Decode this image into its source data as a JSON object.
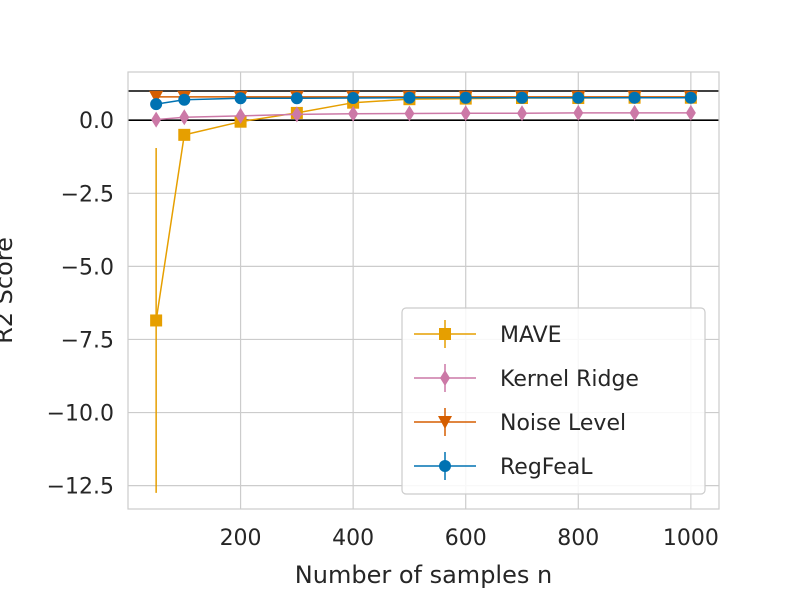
{
  "chart_data": {
    "type": "line",
    "title": "",
    "xlabel": "Number of samples n",
    "ylabel": "R2 Score",
    "xlim": [
      0,
      1050
    ],
    "ylim": [
      -13.3,
      1.65
    ],
    "xticks": [
      200,
      400,
      600,
      800,
      1000
    ],
    "xtick_labels": [
      "200",
      "400",
      "600",
      "800",
      "1000"
    ],
    "yticks": [
      0.0,
      -2.5,
      -5.0,
      -7.5,
      -10.0,
      -12.5
    ],
    "ytick_labels": [
      "0.0",
      "−2.5",
      "−5.0",
      "−7.5",
      "−10.0",
      "−12.5"
    ],
    "reference_lines": [
      0,
      1
    ],
    "grid": true,
    "legend_position": "lower right",
    "x": [
      50,
      100,
      200,
      300,
      400,
      500,
      600,
      700,
      800,
      900,
      1000
    ],
    "series": [
      {
        "name": "MAVE",
        "color": "#e69f00",
        "marker": "square",
        "values": [
          -6.85,
          -0.5,
          -0.05,
          0.25,
          0.6,
          0.72,
          0.74,
          0.76,
          0.76,
          0.77,
          0.77
        ],
        "errors": [
          5.9,
          0.1,
          0.05,
          0.05,
          0.05,
          0.05,
          0.05,
          0.05,
          0.05,
          0.05,
          0.05
        ]
      },
      {
        "name": "Kernel Ridge",
        "color": "#cc79a7",
        "marker": "diamond",
        "values": [
          0.02,
          0.1,
          0.15,
          0.2,
          0.22,
          0.23,
          0.24,
          0.24,
          0.25,
          0.25,
          0.25
        ],
        "errors": [
          0.05,
          0.03,
          0.02,
          0.02,
          0.02,
          0.02,
          0.02,
          0.02,
          0.02,
          0.02,
          0.02
        ]
      },
      {
        "name": "Noise Level",
        "color": "#d55e00",
        "marker": "triangle-down",
        "values": [
          0.8,
          0.8,
          0.8,
          0.8,
          0.8,
          0.8,
          0.8,
          0.8,
          0.8,
          0.8,
          0.8
        ],
        "errors": [
          0.02,
          0.02,
          0.02,
          0.02,
          0.02,
          0.02,
          0.02,
          0.02,
          0.02,
          0.02,
          0.02
        ]
      },
      {
        "name": "RegFeaL",
        "color": "#0072b2",
        "marker": "circle",
        "values": [
          0.55,
          0.7,
          0.75,
          0.75,
          0.76,
          0.77,
          0.77,
          0.77,
          0.77,
          0.77,
          0.77
        ],
        "errors": [
          0.05,
          0.03,
          0.02,
          0.02,
          0.02,
          0.02,
          0.02,
          0.02,
          0.02,
          0.02,
          0.02
        ]
      }
    ]
  }
}
